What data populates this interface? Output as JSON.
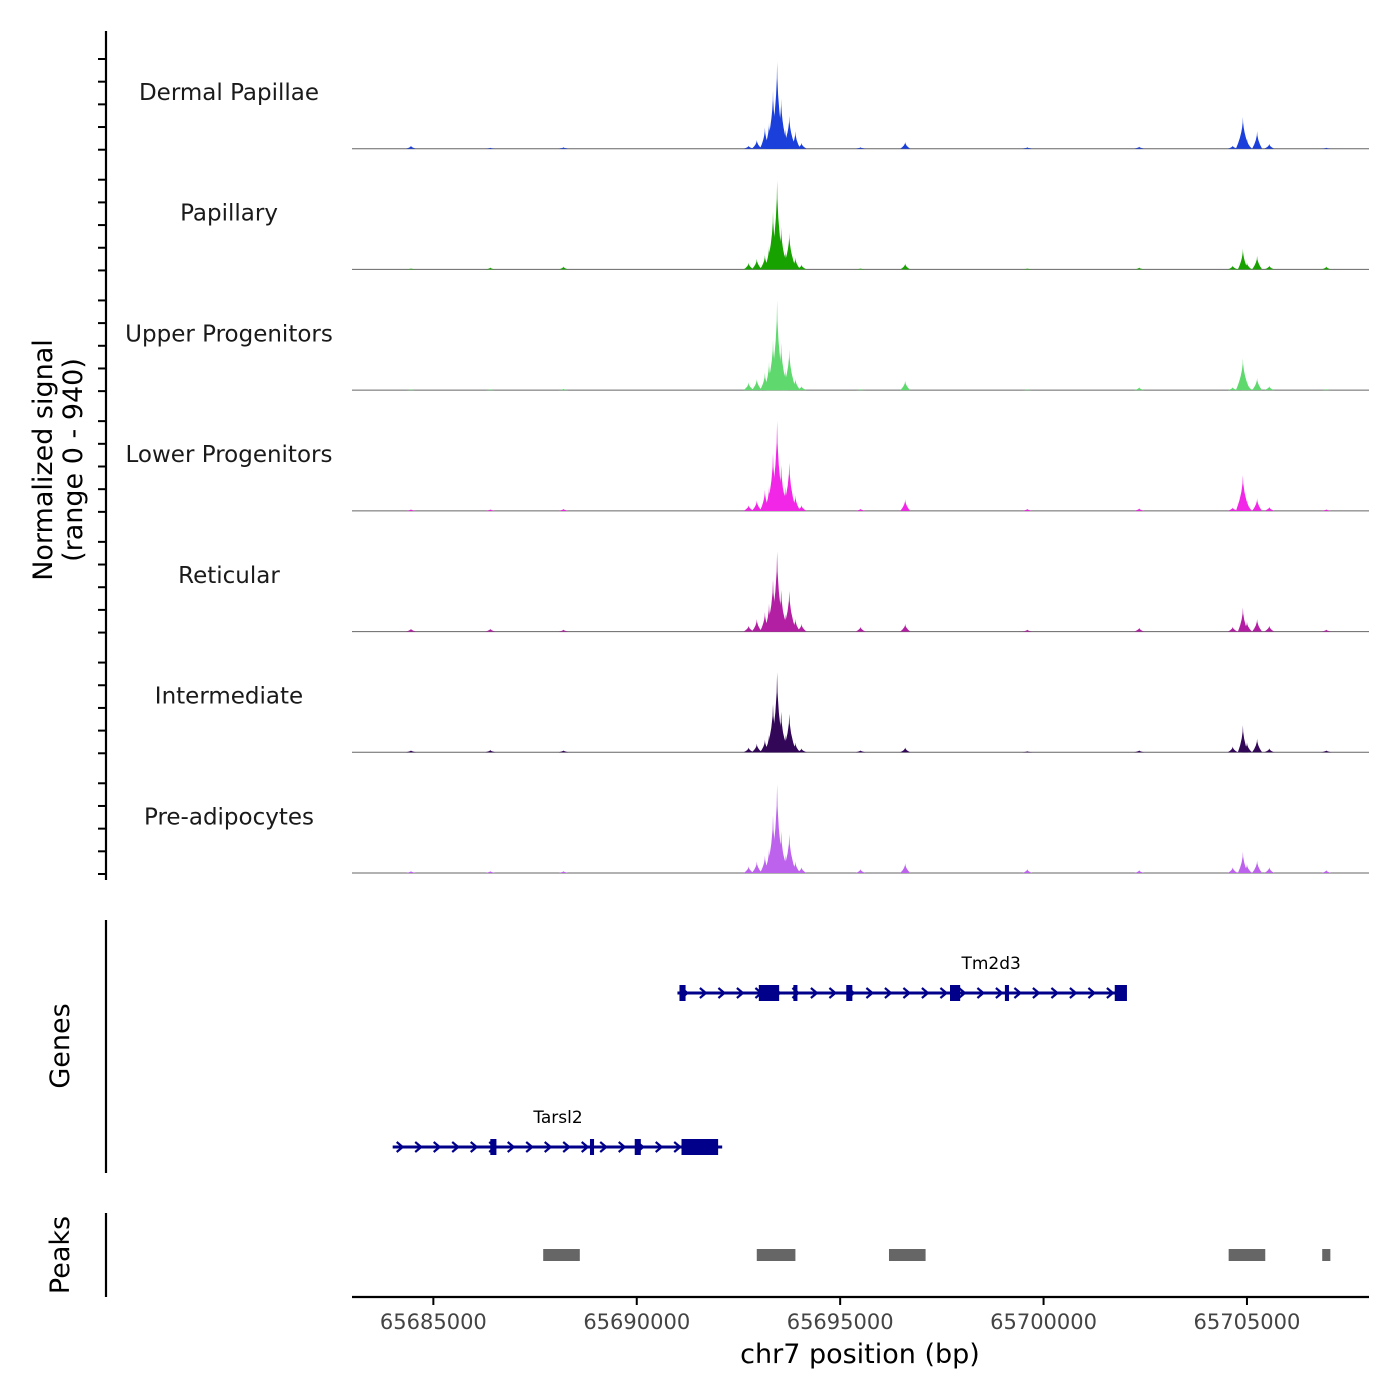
{
  "chart_data": {
    "type": "area",
    "title": "",
    "chromosome": "chr7",
    "xlabel": "chr7 position (bp)",
    "xlim": [
      65683000,
      65708000
    ],
    "xticks": [
      65685000,
      65690000,
      65695000,
      65700000,
      65705000
    ],
    "xtick_labels": [
      "65685000",
      "65690000",
      "65695000",
      "65700000",
      "65705000"
    ],
    "coverage": {
      "ylabel_line1": "Normalized signal",
      "ylabel_line2": "(range 0 - 940)",
      "ylim": [
        0,
        940
      ],
      "peak_positions": [
        65684450,
        65686400,
        65688200,
        65692750,
        65692950,
        65693150,
        65693250,
        65693350,
        65693450,
        65693550,
        65693650,
        65693750,
        65693900,
        65694050,
        65695500,
        65696600,
        65699600,
        65702350,
        65704650,
        65704900,
        65705000,
        65705250,
        65705550,
        65706950
      ],
      "series": [
        {
          "name": "Dermal Papillae",
          "color": "#1A3FDA",
          "values": [
            30,
            10,
            15,
            30,
            90,
            220,
            270,
            600,
            900,
            520,
            200,
            340,
            180,
            60,
            15,
            70,
            15,
            20,
            30,
            330,
            100,
            180,
            50,
            10
          ]
        },
        {
          "name": "Papillary",
          "color": "#17A200",
          "values": [
            10,
            20,
            30,
            70,
            110,
            150,
            240,
            600,
            920,
            440,
            190,
            380,
            120,
            50,
            10,
            60,
            10,
            20,
            40,
            220,
            70,
            140,
            40,
            30
          ]
        },
        {
          "name": "Upper Progenitors",
          "color": "#5FD96E",
          "values": [
            10,
            10,
            15,
            80,
            120,
            180,
            300,
            520,
            930,
            490,
            220,
            420,
            120,
            40,
            10,
            100,
            10,
            30,
            30,
            330,
            90,
            130,
            40,
            10
          ]
        },
        {
          "name": "Lower Progenitors",
          "color": "#F226E6",
          "values": [
            15,
            15,
            20,
            60,
            110,
            220,
            250,
            600,
            930,
            470,
            250,
            500,
            160,
            60,
            20,
            120,
            20,
            25,
            35,
            370,
            110,
            130,
            40,
            15
          ]
        },
        {
          "name": "Reticular",
          "color": "#B31FA3",
          "values": [
            30,
            30,
            20,
            60,
            130,
            200,
            290,
            540,
            830,
            430,
            180,
            420,
            130,
            80,
            50,
            80,
            20,
            40,
            50,
            250,
            100,
            130,
            60,
            20
          ]
        },
        {
          "name": "Intermediate",
          "color": "#330758",
          "values": [
            20,
            25,
            20,
            50,
            90,
            130,
            180,
            500,
            830,
            420,
            180,
            400,
            100,
            40,
            20,
            50,
            10,
            20,
            60,
            280,
            100,
            140,
            40,
            20
          ]
        },
        {
          "name": "Pre-adipocytes",
          "color": "#BC62EC",
          "values": [
            20,
            20,
            20,
            70,
            120,
            180,
            250,
            600,
            920,
            430,
            190,
            400,
            120,
            60,
            40,
            100,
            40,
            30,
            60,
            220,
            90,
            130,
            60,
            30
          ]
        }
      ]
    },
    "genes_track": {
      "label": "Genes",
      "color": "#00008B",
      "genes": [
        {
          "name": "Tm2d3",
          "start": 65691000,
          "end": 65702000,
          "strand": "+",
          "exons": [
            [
              65691050,
              65691200
            ],
            [
              65693000,
              65693500
            ],
            [
              65693850,
              65693950
            ],
            [
              65695150,
              65695300
            ],
            [
              65697700,
              65697950
            ],
            [
              65699050,
              65699150
            ],
            [
              65701750,
              65702050
            ]
          ]
        },
        {
          "name": "Tarsl2",
          "start": 65684000,
          "end": 65692100,
          "strand": "+",
          "exons": [
            [
              65686400,
              65686550
            ],
            [
              65688850,
              65688950
            ],
            [
              65689950,
              65690100
            ],
            [
              65691100,
              65692000
            ]
          ]
        }
      ]
    },
    "peaks_track": {
      "label": "Peaks",
      "color": "#666666",
      "peaks": [
        [
          65687700,
          65688600
        ],
        [
          65692950,
          65693900
        ],
        [
          65696200,
          65697100
        ],
        [
          65704550,
          65705450
        ],
        [
          65706850,
          65707050
        ]
      ]
    }
  }
}
